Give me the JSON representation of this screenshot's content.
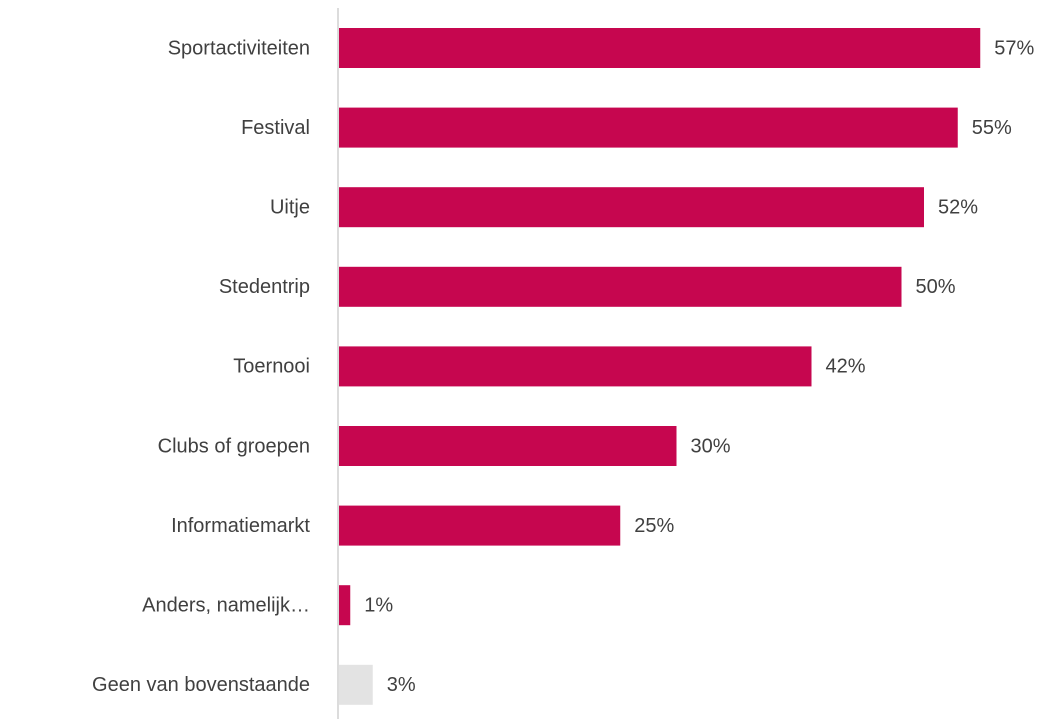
{
  "chart_data": {
    "type": "hbar",
    "categories": [
      "Sportactiviteiten",
      "Festival",
      "Uitje",
      "Stedentrip",
      "Toernooi",
      "Clubs of groepen",
      "Informatiemarkt",
      "Anders, namelijk…",
      "Geen van bovenstaande"
    ],
    "values": [
      57,
      55,
      52,
      50,
      42,
      30,
      25,
      1,
      3
    ],
    "value_labels": [
      "57%",
      "55%",
      "52%",
      "50%",
      "42%",
      "30%",
      "25%",
      "1%",
      "3%"
    ],
    "colors": [
      "#c6064f",
      "#c6064f",
      "#c6064f",
      "#c6064f",
      "#c6064f",
      "#c6064f",
      "#c6064f",
      "#c6064f",
      "#e3e3e3"
    ],
    "xlim": [
      0,
      60
    ]
  }
}
